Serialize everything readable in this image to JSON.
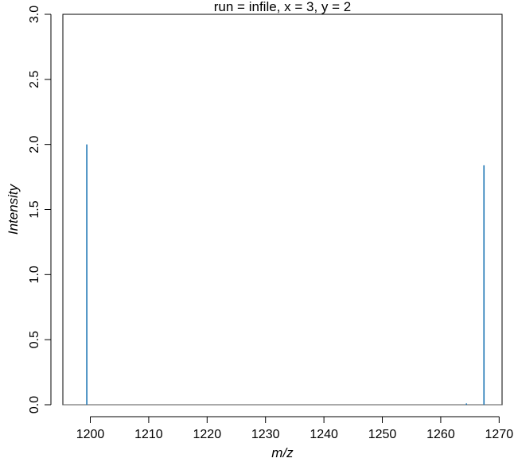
{
  "chart_data": {
    "type": "line",
    "title": "run = infile, x = 3, y = 2",
    "xlabel": "m/z",
    "ylabel": "Intensity",
    "xlim": [
      1195.3,
      1270.5
    ],
    "ylim": [
      0,
      3.0
    ],
    "x_ticks": [
      1200,
      1210,
      1220,
      1230,
      1240,
      1250,
      1260,
      1270
    ],
    "y_ticks": [
      0.0,
      0.5,
      1.0,
      1.5,
      2.0,
      2.5,
      3.0
    ],
    "x_tick_labels": [
      "1200",
      "1210",
      "1220",
      "1230",
      "1240",
      "1250",
      "1260",
      "1270"
    ],
    "y_tick_labels": [
      "0.0",
      "0.5",
      "1.0",
      "1.5",
      "2.0",
      "2.5",
      "3.0"
    ],
    "baseline": 0,
    "series": [
      {
        "color": "#1f77b4",
        "peaks": [
          {
            "x": 1199.4,
            "y": 2.0
          },
          {
            "x": 1264.4,
            "y": 0.01
          },
          {
            "x": 1267.4,
            "y": 1.84
          }
        ]
      }
    ],
    "grid": false,
    "legend": "none"
  }
}
